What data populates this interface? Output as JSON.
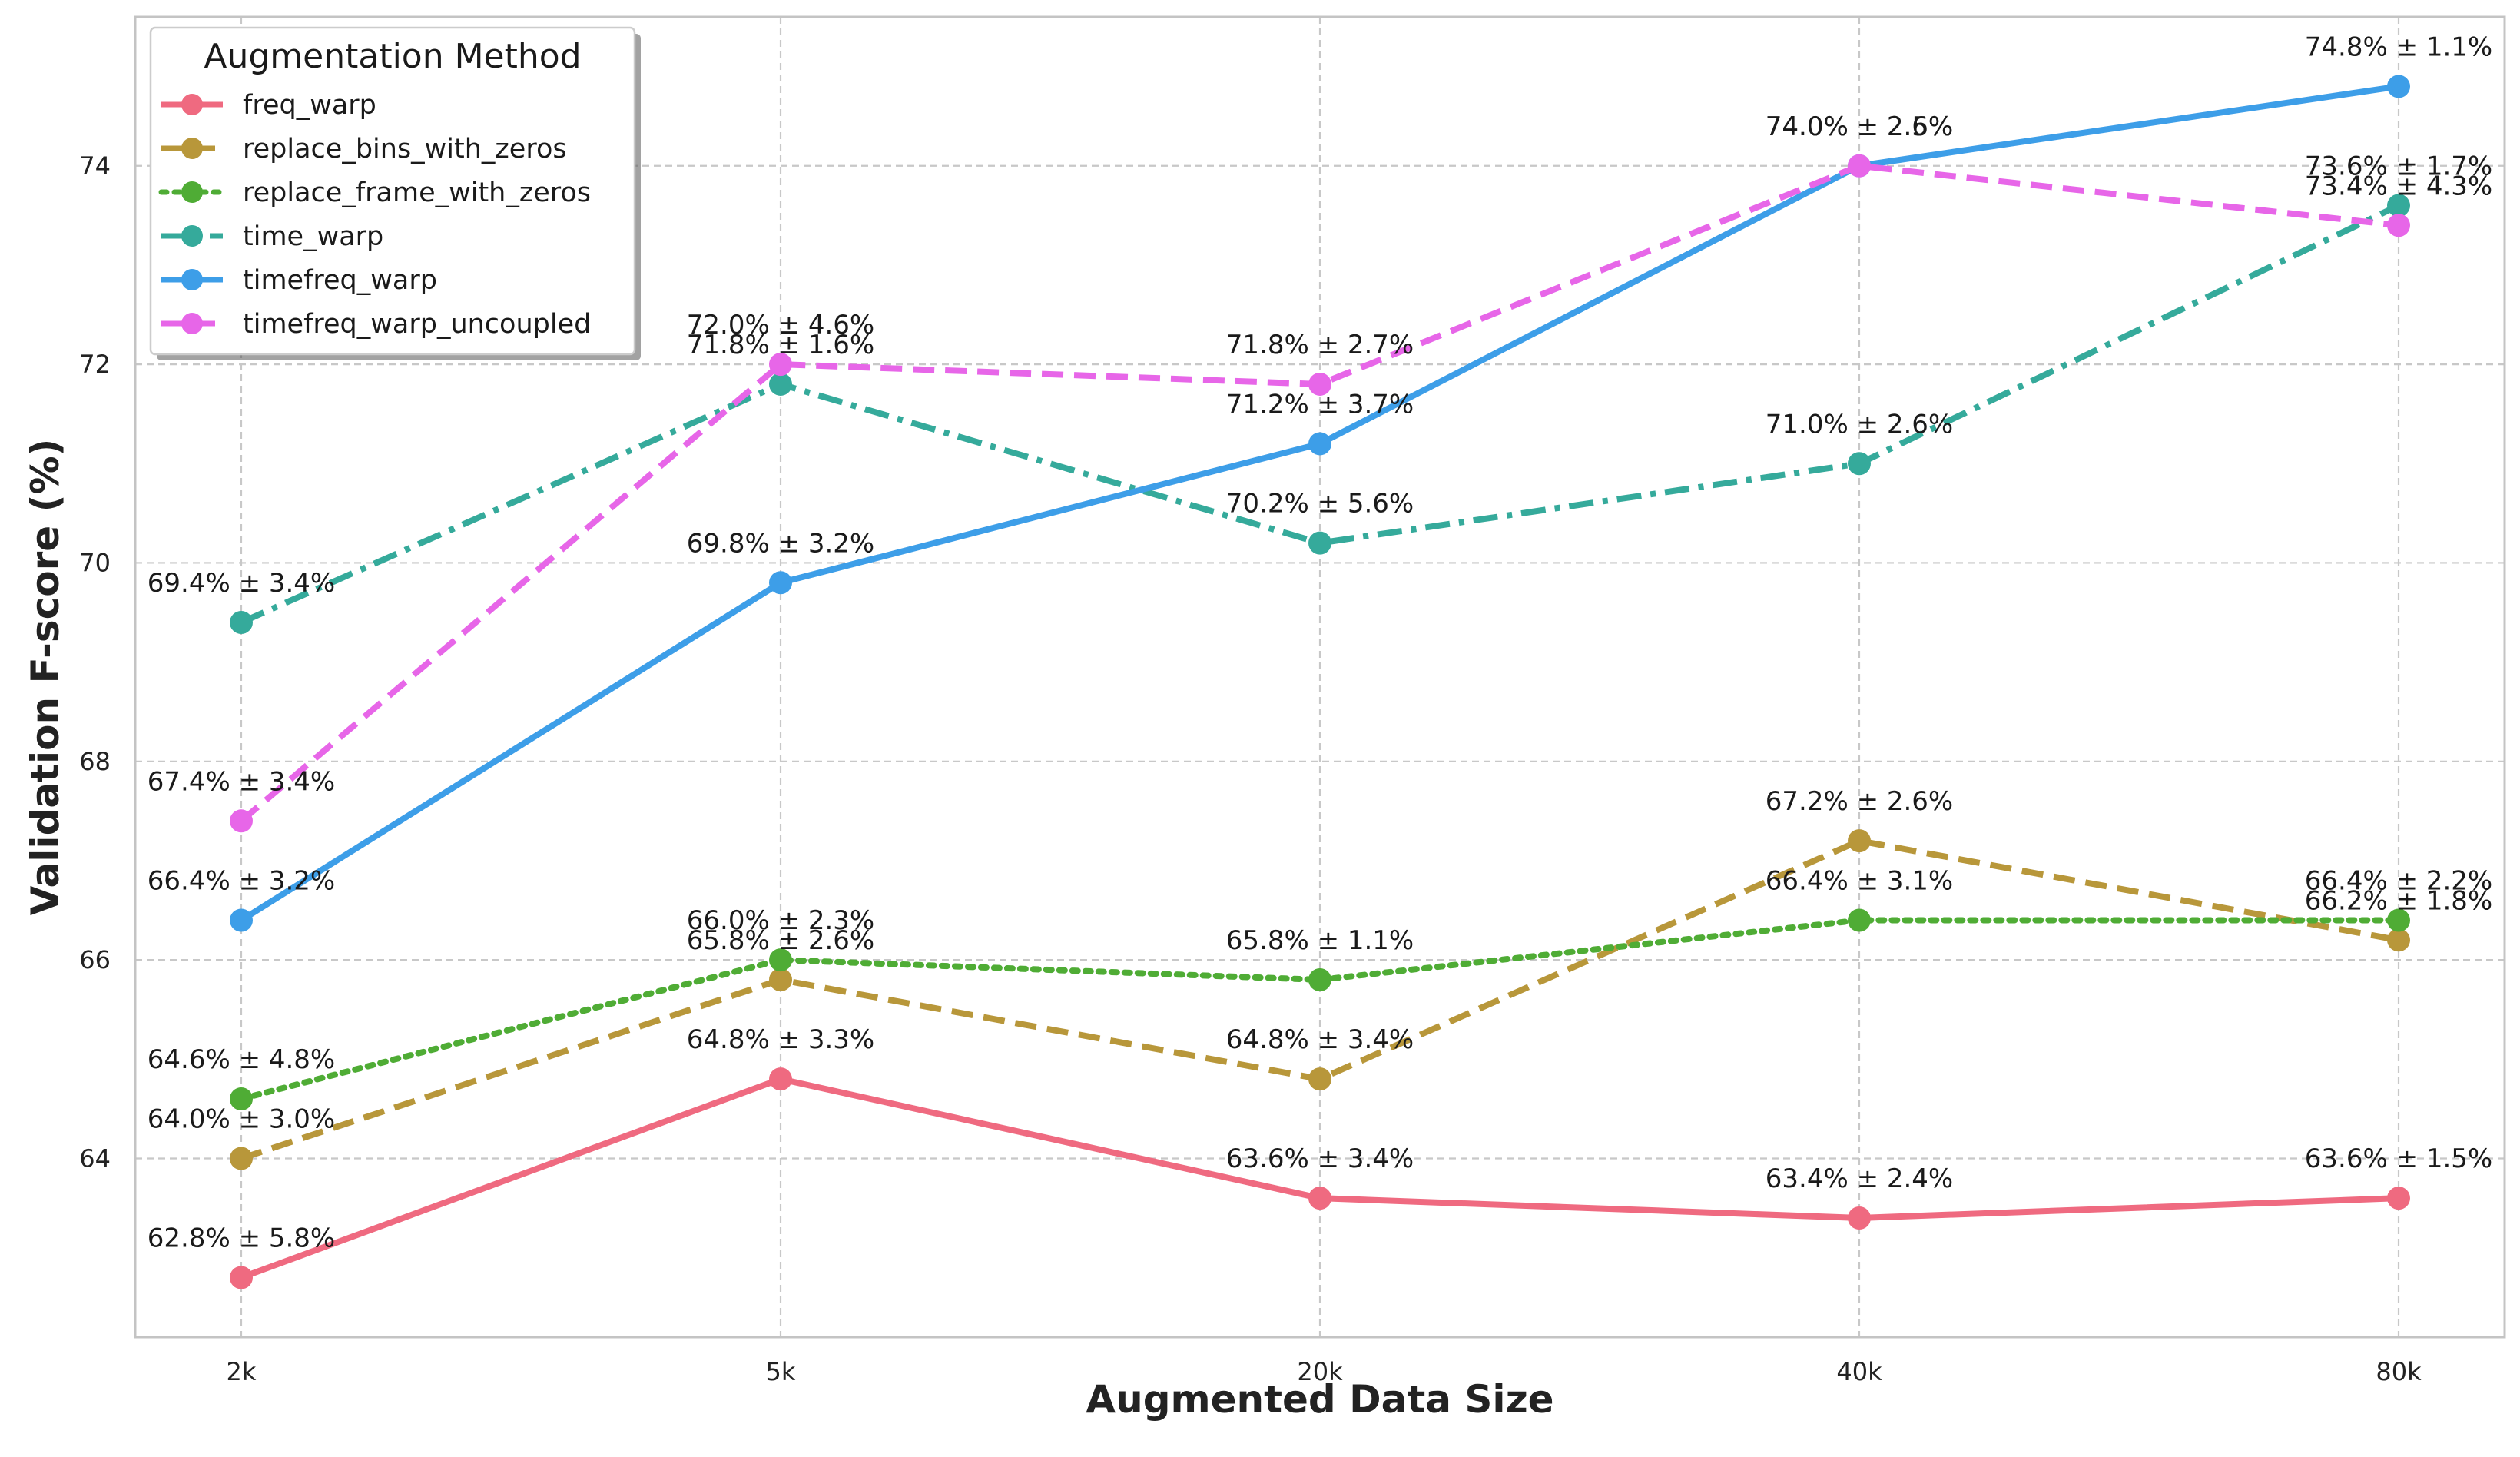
{
  "chart_data": {
    "type": "line",
    "xlabel": "Augmented Data Size",
    "ylabel": "Validation F-score (%)",
    "categories": [
      "2k",
      "5k",
      "20k",
      "40k",
      "80k"
    ],
    "ylim": [
      62.2,
      75.5
    ],
    "yticks": [
      64,
      66,
      68,
      70,
      72,
      74
    ],
    "grid": true,
    "legend": {
      "title": "Augmentation Method",
      "placement": "top-left"
    },
    "series": [
      {
        "name": "freq_warp",
        "color": "#ef6a80",
        "style": "solid",
        "values": [
          62.8,
          64.8,
          63.6,
          63.4,
          63.6
        ],
        "labels": [
          "62.8% ± 5.8%",
          "64.8% ± 3.3%",
          "63.6% ± 3.4%",
          "63.4% ± 2.4%",
          "63.6% ± 1.5%"
        ]
      },
      {
        "name": "replace_bins_with_zeros",
        "color": "#b8973a",
        "style": "dashed",
        "values": [
          64.0,
          65.8,
          64.8,
          67.2,
          66.2
        ],
        "labels": [
          "64.0% ± 3.0%",
          "65.8% ± 2.6%",
          "64.8% ± 3.4%",
          "67.2% ± 2.6%",
          "66.2% ± 1.8%"
        ]
      },
      {
        "name": "replace_frame_with_zeros",
        "color": "#4fac35",
        "style": "dotted",
        "values": [
          64.6,
          66.0,
          65.8,
          66.4,
          66.4
        ],
        "labels": [
          "64.6% ± 4.8%",
          "66.0% ± 2.3%",
          "65.8% ± 1.1%",
          "66.4% ± 3.1%",
          "66.4% ± 2.2%"
        ]
      },
      {
        "name": "time_warp",
        "color": "#35aa9b",
        "style": "dashdot",
        "values": [
          69.4,
          71.8,
          70.2,
          71.0,
          73.6
        ],
        "labels": [
          "69.4% ± 3.4%",
          "71.8% ± 1.6%",
          "70.2% ± 5.6%",
          "71.0% ± 2.6%",
          "73.6% ± 1.7%"
        ]
      },
      {
        "name": "timefreq_warp",
        "color": "#3d9ee8",
        "style": "solid",
        "values": [
          66.4,
          69.8,
          71.2,
          74.0,
          74.8
        ],
        "labels": [
          "66.4% ± 3.2%",
          "69.8% ± 3.2%",
          "71.2% ± 3.7%",
          "74.0% ± 2.5%",
          "74.8% ± 1.1%"
        ]
      },
      {
        "name": "timefreq_warp_uncoupled",
        "color": "#e766e8",
        "style": "dashed",
        "values": [
          67.4,
          72.0,
          71.8,
          74.0,
          73.4
        ],
        "labels": [
          "67.4% ± 3.4%",
          "72.0% ± 4.6%",
          "71.8% ± 2.7%",
          "74.0% ± 2.6%",
          "73.4% ± 4.3%"
        ]
      }
    ]
  }
}
